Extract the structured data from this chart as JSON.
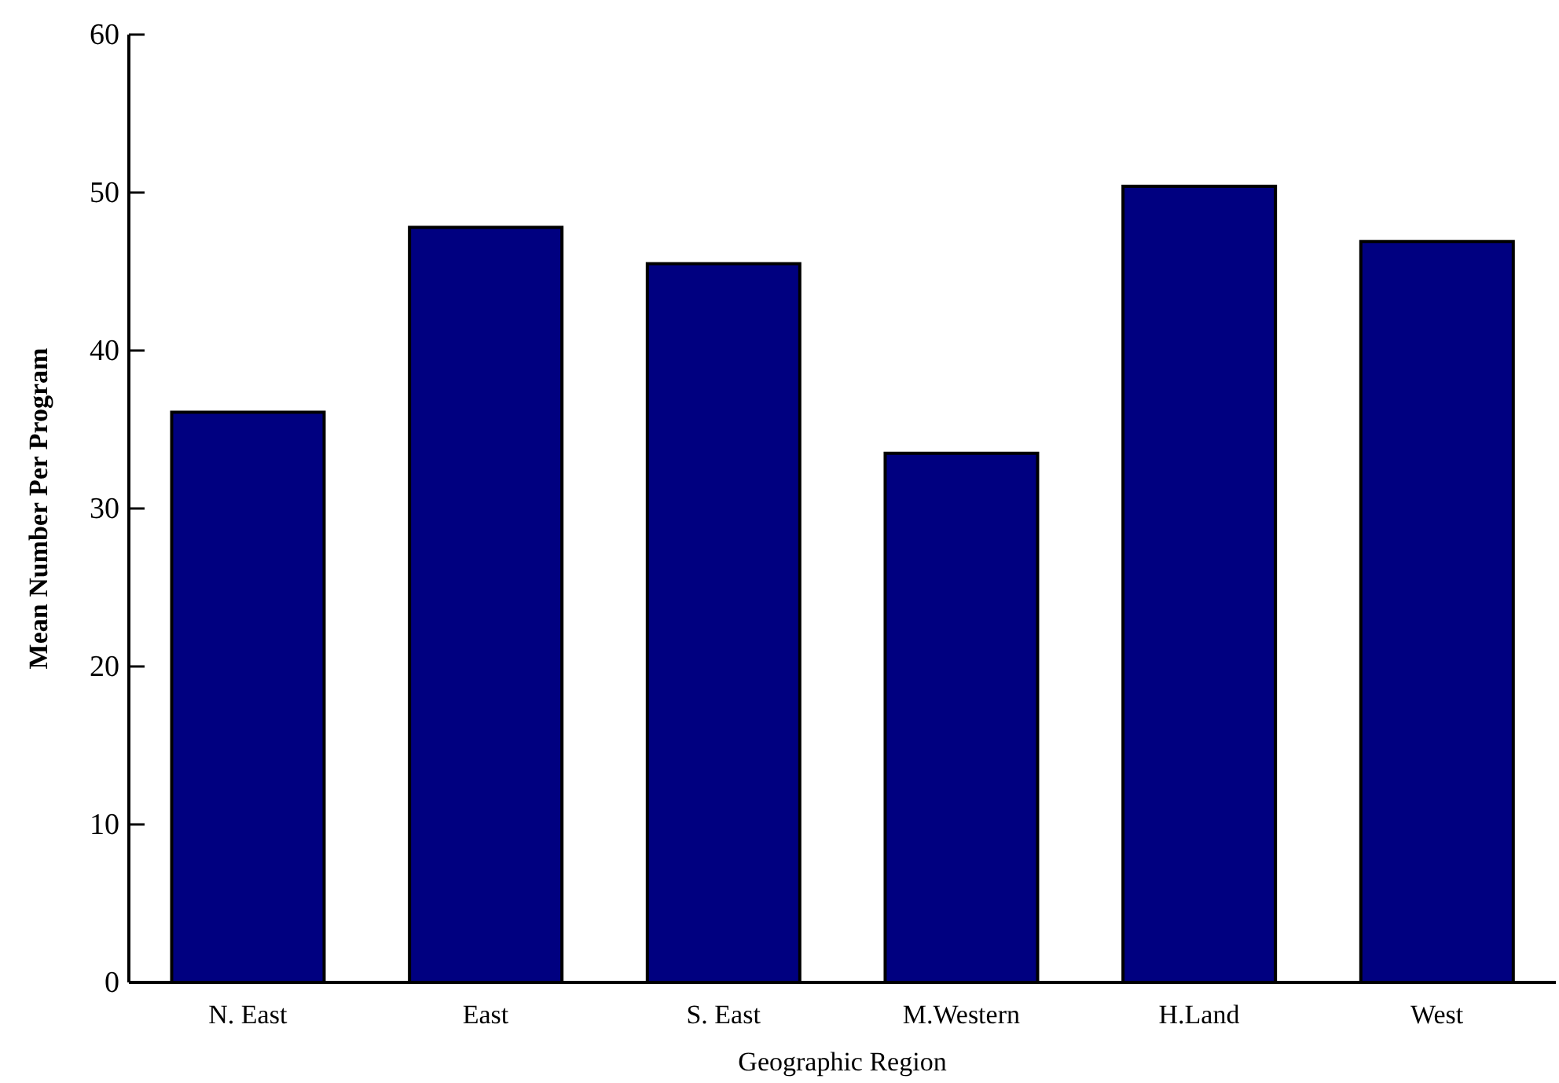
{
  "chart_data": {
    "type": "bar",
    "xlabel": "Geographic Region",
    "ylabel": "Mean Number Per Program",
    "categories": [
      "N. East",
      "East",
      "S. East",
      "M.Western",
      "H.Land",
      "West"
    ],
    "values": [
      36.1,
      47.8,
      45.5,
      33.5,
      50.4,
      46.9
    ],
    "color": "#000080",
    "ylim": [
      0,
      60
    ],
    "yticks": [
      0,
      10,
      20,
      30,
      40,
      50,
      60
    ],
    "grid": false,
    "legend": false
  }
}
